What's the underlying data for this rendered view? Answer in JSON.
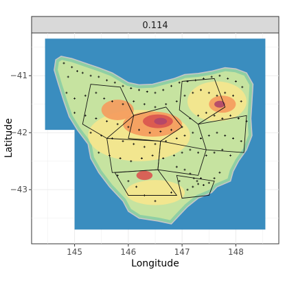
{
  "panel": {
    "strip_label": "0.114",
    "panel_background": "#ffffff",
    "grid_color": "#ebebeb",
    "strip_fill": "#d9d9d9"
  },
  "chart_data": {
    "type": "map",
    "xlabel": "Longitude",
    "ylabel": "Latitude",
    "xlim": [
      144.2,
      148.8
    ],
    "ylim": [
      -43.95,
      -40.25
    ],
    "x_ticks": [
      {
        "value": 145,
        "label": "145"
      },
      {
        "value": 146,
        "label": "146"
      },
      {
        "value": 147,
        "label": "147"
      },
      {
        "value": 148,
        "label": "148"
      }
    ],
    "y_ticks": [
      {
        "value": -41,
        "label": "−41"
      },
      {
        "value": -42,
        "label": "−42"
      },
      {
        "value": -43,
        "label": "−43"
      }
    ],
    "raster_colors": {
      "sea": "#3a8dbf",
      "coast": "#8fcfa4",
      "lowland": "#c6e3a0",
      "mid": "#f6e58d",
      "high": "#f59a5d",
      "peak": "#d9534f",
      "summit": "#b0456a"
    },
    "sea_extent": {
      "west": 144.45,
      "east": 148.55,
      "north": -40.35,
      "south": -43.7,
      "notch_lon": 145.0,
      "notch_lat": -41.95
    },
    "coastline": [
      [
        144.65,
        -40.72
      ],
      [
        144.75,
        -40.66
      ],
      [
        144.95,
        -40.7
      ],
      [
        145.2,
        -40.78
      ],
      [
        145.45,
        -40.86
      ],
      [
        145.7,
        -40.95
      ],
      [
        146.0,
        -41.12
      ],
      [
        146.2,
        -41.16
      ],
      [
        146.45,
        -41.15
      ],
      [
        146.65,
        -41.1
      ],
      [
        146.85,
        -41.05
      ],
      [
        147.05,
        -40.98
      ],
      [
        147.3,
        -40.96
      ],
      [
        147.55,
        -40.92
      ],
      [
        147.8,
        -40.86
      ],
      [
        148.0,
        -40.88
      ],
      [
        148.2,
        -40.95
      ],
      [
        148.32,
        -41.15
      ],
      [
        148.3,
        -41.45
      ],
      [
        148.28,
        -41.75
      ],
      [
        148.3,
        -42.05
      ],
      [
        148.2,
        -42.3
      ],
      [
        148.05,
        -42.5
      ],
      [
        147.95,
        -42.68
      ],
      [
        147.9,
        -42.85
      ],
      [
        147.65,
        -42.95
      ],
      [
        147.55,
        -43.05
      ],
      [
        147.3,
        -43.15
      ],
      [
        147.1,
        -43.3
      ],
      [
        146.95,
        -43.45
      ],
      [
        146.8,
        -43.6
      ],
      [
        146.55,
        -43.55
      ],
      [
        146.2,
        -43.5
      ],
      [
        146.0,
        -43.38
      ],
      [
        145.9,
        -43.2
      ],
      [
        145.65,
        -42.95
      ],
      [
        145.45,
        -42.7
      ],
      [
        145.3,
        -42.45
      ],
      [
        145.25,
        -42.2
      ],
      [
        145.05,
        -41.95
      ],
      [
        144.9,
        -41.72
      ],
      [
        144.8,
        -41.45
      ],
      [
        144.7,
        -41.15
      ],
      [
        144.62,
        -40.9
      ]
    ],
    "relief": [
      {
        "level": "mid",
        "center": [
          146.2,
          -42.05
        ],
        "rx": 0.95,
        "ry": 0.45
      },
      {
        "level": "mid",
        "center": [
          147.65,
          -41.45
        ],
        "rx": 0.55,
        "ry": 0.35
      },
      {
        "level": "mid",
        "center": [
          146.5,
          -43.05
        ],
        "rx": 0.55,
        "ry": 0.22
      },
      {
        "level": "high",
        "center": [
          146.45,
          -41.85
        ],
        "rx": 0.55,
        "ry": 0.22
      },
      {
        "level": "high",
        "center": [
          145.8,
          -41.6
        ],
        "rx": 0.3,
        "ry": 0.18
      },
      {
        "level": "high",
        "center": [
          147.75,
          -41.5
        ],
        "rx": 0.25,
        "ry": 0.15
      },
      {
        "level": "peak",
        "center": [
          146.55,
          -41.8
        ],
        "rx": 0.28,
        "ry": 0.12
      },
      {
        "level": "peak",
        "center": [
          146.3,
          -42.75
        ],
        "rx": 0.15,
        "ry": 0.08
      },
      {
        "level": "summit",
        "center": [
          146.6,
          -41.8
        ],
        "rx": 0.12,
        "ry": 0.06
      },
      {
        "level": "summit",
        "center": [
          147.7,
          -41.5
        ],
        "rx": 0.1,
        "ry": 0.06
      }
    ],
    "region_outlines": [
      [
        [
          145.3,
          -41.15
        ],
        [
          145.85,
          -41.2
        ],
        [
          146.1,
          -41.7
        ],
        [
          145.6,
          -42.1
        ],
        [
          145.15,
          -41.85
        ]
      ],
      [
        [
          146.1,
          -41.7
        ],
        [
          146.7,
          -41.55
        ],
        [
          147.0,
          -41.9
        ],
        [
          146.6,
          -42.15
        ],
        [
          146.0,
          -42.1
        ]
      ],
      [
        [
          147.0,
          -41.1
        ],
        [
          147.6,
          -41.05
        ],
        [
          147.8,
          -41.55
        ],
        [
          147.3,
          -41.85
        ],
        [
          146.95,
          -41.6
        ]
      ],
      [
        [
          147.3,
          -41.85
        ],
        [
          148.2,
          -41.7
        ],
        [
          148.15,
          -42.35
        ],
        [
          147.45,
          -42.3
        ]
      ],
      [
        [
          145.6,
          -42.1
        ],
        [
          146.6,
          -42.15
        ],
        [
          146.55,
          -42.65
        ],
        [
          145.7,
          -42.7
        ]
      ],
      [
        [
          146.6,
          -42.15
        ],
        [
          147.45,
          -42.3
        ],
        [
          147.3,
          -42.75
        ],
        [
          146.55,
          -42.65
        ]
      ],
      [
        [
          145.75,
          -42.7
        ],
        [
          146.55,
          -42.65
        ],
        [
          146.9,
          -43.1
        ],
        [
          146.0,
          -43.1
        ]
      ],
      [
        [
          146.9,
          -42.75
        ],
        [
          147.6,
          -42.85
        ],
        [
          147.5,
          -43.1
        ],
        [
          147.0,
          -43.15
        ]
      ]
    ],
    "points": [
      [
        144.8,
        -40.78
      ],
      [
        144.95,
        -40.85
      ],
      [
        145.05,
        -40.92
      ],
      [
        144.88,
        -41.02
      ],
      [
        145.15,
        -40.95
      ],
      [
        145.3,
        -41.0
      ],
      [
        145.45,
        -41.02
      ],
      [
        145.6,
        -41.08
      ],
      [
        145.75,
        -41.12
      ],
      [
        145.9,
        -41.18
      ],
      [
        146.05,
        -41.22
      ],
      [
        146.2,
        -41.25
      ],
      [
        146.35,
        -41.28
      ],
      [
        146.5,
        -41.3
      ],
      [
        146.65,
        -41.25
      ],
      [
        146.8,
        -41.18
      ],
      [
        146.95,
        -41.12
      ],
      [
        147.1,
        -41.1
      ],
      [
        147.25,
        -41.08
      ],
      [
        147.4,
        -41.05
      ],
      [
        147.55,
        -41.02
      ],
      [
        147.7,
        -41.0
      ],
      [
        147.85,
        -41.05
      ],
      [
        148.0,
        -41.1
      ],
      [
        148.12,
        -41.2
      ],
      [
        144.85,
        -41.3
      ],
      [
        145.0,
        -41.4
      ],
      [
        145.2,
        -41.35
      ],
      [
        145.4,
        -41.3
      ],
      [
        145.55,
        -41.4
      ],
      [
        145.7,
        -41.45
      ],
      [
        145.9,
        -41.5
      ],
      [
        146.1,
        -41.45
      ],
      [
        146.3,
        -41.5
      ],
      [
        146.5,
        -41.55
      ],
      [
        146.7,
        -41.5
      ],
      [
        146.9,
        -41.45
      ],
      [
        147.05,
        -41.35
      ],
      [
        147.2,
        -41.3
      ],
      [
        147.35,
        -41.25
      ],
      [
        147.5,
        -41.3
      ],
      [
        147.65,
        -41.35
      ],
      [
        147.8,
        -41.3
      ],
      [
        147.95,
        -41.35
      ],
      [
        148.1,
        -41.45
      ],
      [
        145.0,
        -41.65
      ],
      [
        145.2,
        -41.7
      ],
      [
        145.4,
        -41.75
      ],
      [
        145.6,
        -41.8
      ],
      [
        145.8,
        -41.85
      ],
      [
        146.0,
        -41.9
      ],
      [
        146.2,
        -41.95
      ],
      [
        146.4,
        -42.0
      ],
      [
        146.6,
        -41.98
      ],
      [
        146.8,
        -41.95
      ],
      [
        147.0,
        -41.9
      ],
      [
        147.15,
        -41.75
      ],
      [
        147.3,
        -41.7
      ],
      [
        147.45,
        -41.65
      ],
      [
        147.6,
        -41.7
      ],
      [
        147.75,
        -41.75
      ],
      [
        147.9,
        -41.7
      ],
      [
        148.05,
        -41.75
      ],
      [
        148.2,
        -41.8
      ],
      [
        145.3,
        -42.0
      ],
      [
        145.5,
        -42.05
      ],
      [
        145.7,
        -42.1
      ],
      [
        145.9,
        -42.15
      ],
      [
        146.1,
        -42.2
      ],
      [
        146.3,
        -42.25
      ],
      [
        146.5,
        -42.2
      ],
      [
        146.7,
        -42.15
      ],
      [
        146.9,
        -42.1
      ],
      [
        147.05,
        -42.05
      ],
      [
        147.2,
        -42.0
      ],
      [
        147.35,
        -42.1
      ],
      [
        147.5,
        -42.05
      ],
      [
        147.65,
        -42.0
      ],
      [
        147.8,
        -42.05
      ],
      [
        147.95,
        -42.1
      ],
      [
        148.1,
        -42.15
      ],
      [
        145.45,
        -42.35
      ],
      [
        145.65,
        -42.4
      ],
      [
        145.85,
        -42.45
      ],
      [
        146.05,
        -42.5
      ],
      [
        146.25,
        -42.45
      ],
      [
        146.45,
        -42.4
      ],
      [
        146.65,
        -42.45
      ],
      [
        146.85,
        -42.4
      ],
      [
        147.0,
        -42.35
      ],
      [
        147.15,
        -42.3
      ],
      [
        147.3,
        -42.35
      ],
      [
        147.45,
        -42.4
      ],
      [
        147.6,
        -42.35
      ],
      [
        147.75,
        -42.3
      ],
      [
        147.9,
        -42.4
      ],
      [
        146.9,
        -42.6
      ],
      [
        147.05,
        -42.65
      ],
      [
        147.15,
        -42.72
      ],
      [
        147.22,
        -42.8
      ],
      [
        147.28,
        -42.85
      ],
      [
        147.35,
        -42.8
      ],
      [
        147.3,
        -42.9
      ],
      [
        147.2,
        -42.95
      ],
      [
        147.4,
        -42.92
      ],
      [
        147.5,
        -42.88
      ],
      [
        147.6,
        -42.8
      ],
      [
        147.7,
        -42.7
      ],
      [
        146.95,
        -42.85
      ],
      [
        147.1,
        -43.0
      ],
      [
        146.8,
        -43.05
      ],
      [
        145.8,
        -42.75
      ],
      [
        146.0,
        -42.85
      ],
      [
        146.15,
        -42.95
      ],
      [
        146.3,
        -43.1
      ],
      [
        146.5,
        -43.2
      ]
    ]
  }
}
